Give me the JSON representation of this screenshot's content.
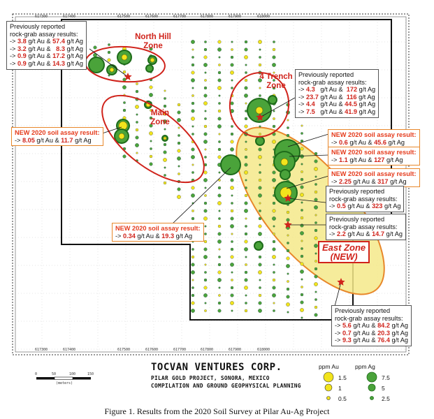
{
  "map": {
    "zones": {
      "north_hill": "North Hill\nZone",
      "main": "Main\nZone",
      "four_trench": "4 Trench\nZone",
      "east_line1": "East Zone",
      "east_line2": "(NEW)"
    },
    "colors": {
      "zone_outline": "#d0231b",
      "east_fill": "#f5e98a",
      "east_outline": "#e8872a",
      "au_yellow": "#f2e41c",
      "ag_green": "#4aa33a",
      "ag_dark": "#1e6b1a",
      "star": "#d0231b",
      "new_callout_border": "#e8872a"
    }
  },
  "callouts": {
    "north_hill": {
      "header1": "Previously reported",
      "header2": "rock-grab assay results:",
      "rows": [
        {
          "prefix": "-> ",
          "au": "3.8",
          "mid1": " g/t Au & ",
          "ag": "57.4",
          "mid2": " g/t Ag"
        },
        {
          "prefix": "-> ",
          "au": "3.2",
          "mid1": " g/t Au &   ",
          "ag": "8.3",
          "mid2": " g/t Ag"
        },
        {
          "prefix": "-> ",
          "au": "0.9",
          "mid1": " g/t Au & ",
          "ag": "17.2",
          "mid2": " g/t Ag"
        },
        {
          "prefix": "-> ",
          "au": "0.9",
          "mid1": " g/t Au & ",
          "ag": "14.3",
          "mid2": " g/t Ag"
        }
      ]
    },
    "four_trench": {
      "header1": "Previously reported",
      "header2": "rock-grab assay results:",
      "rows": [
        {
          "prefix": "-> ",
          "au": "4.3",
          "mid1": "   g/t Au &  ",
          "ag": "172",
          "mid2": " g/t Ag"
        },
        {
          "prefix": "-> ",
          "au": "23.7",
          "mid1": " g/t Au &  ",
          "ag": "116",
          "mid2": " g/t Ag"
        },
        {
          "prefix": "-> ",
          "au": "4.4",
          "mid1": "   g/t Au & ",
          "ag": "44.5",
          "mid2": " g/t Ag"
        },
        {
          "prefix": "-> ",
          "au": "7.5",
          "mid1": "   g/t Au & ",
          "ag": "41.9",
          "mid2": " g/t Ag"
        }
      ]
    },
    "main_new": {
      "header": "NEW 2020 soil assay result:",
      "row": {
        "prefix": "-> ",
        "au": "8.05",
        "mid1": " g/t Au & ",
        "ag": "11.7",
        "mid2": " g/t Ag"
      }
    },
    "east_new1": {
      "header": "NEW 2020 soil assay result:",
      "row": {
        "prefix": "-> ",
        "au": "0.6",
        "mid1": " g/t Au & ",
        "ag": "45.6",
        "mid2": " g/t Ag"
      }
    },
    "east_new2": {
      "header": "NEW 2020 soil assay result:",
      "row": {
        "prefix": "-> ",
        "au": "1.1",
        "mid1": " g/t Au & ",
        "ag": "127",
        "mid2": " g/t Ag"
      }
    },
    "east_new3": {
      "header": "NEW 2020 soil assay result:",
      "row": {
        "prefix": "-> ",
        "au": "2.25",
        "mid1": " g/t Au & ",
        "ag": "317",
        "mid2": " g/t Ag"
      }
    },
    "east_prev1": {
      "header1": "Previously reported",
      "header2": "rock-grab assay results:",
      "row": {
        "prefix": "-> ",
        "au": "0.5",
        "mid1": " g/t Au & ",
        "ag": "323",
        "mid2": " g/t Ag"
      }
    },
    "east_prev2": {
      "header1": "Previously reported",
      "header2": "rock-grab assay results:",
      "row": {
        "prefix": "-> ",
        "au": "2.2",
        "mid1": " g/t Au & ",
        "ag": "14.7",
        "mid2": " g/t Ag"
      }
    },
    "center_new": {
      "header": "NEW 2020 soil assay result:",
      "row": {
        "prefix": "-> ",
        "au": "0.34",
        "mid1": " g/t Au & ",
        "ag": "19.3",
        "mid2": " g/t Ag"
      }
    },
    "south_prev": {
      "header1": "Previously reported",
      "header2": "rock-grab assay results:",
      "rows": [
        {
          "prefix": "-> ",
          "au": "5.6",
          "mid1": " g/t Au & ",
          "ag": "84.2",
          "mid2": " g/t Ag"
        },
        {
          "prefix": "-> ",
          "au": "0.7",
          "mid1": " g/t Au & ",
          "ag": "20.3",
          "mid2": " g/t Ag"
        },
        {
          "prefix": "-> ",
          "au": "9.3",
          "mid1": " g/t Au & ",
          "ag": "76.4",
          "mid2": " g/t Ag"
        }
      ]
    }
  },
  "title_block": {
    "company": "TOCVAN VENTURES CORP.",
    "project": "PILAR GOLD PROJECT, SONORA, MEXICO",
    "subtitle": "COMPILATION AND GROUND GEOPHYSICAL PLANNING"
  },
  "legend": {
    "au_header": "ppm Au",
    "ag_header": "ppm Ag",
    "au_levels": [
      "1.5",
      "1",
      "0.5"
    ],
    "ag_levels": [
      "7.5",
      "5",
      "2.5"
    ]
  },
  "scale_bar": {
    "ticks": [
      "0",
      "50",
      "100",
      "150"
    ],
    "unit": "(meters)"
  },
  "ticks": {
    "top": [
      "617300",
      "617400",
      "617500",
      "617600",
      "617700",
      "617800",
      "617900",
      "618000"
    ],
    "bottom": [
      "617300",
      "617400",
      "617500",
      "617600",
      "617700",
      "617800",
      "617900",
      "618000"
    ]
  },
  "caption": "Figure 1. Results from the 2020 Soil Survey at Pilar Au-Ag Project"
}
